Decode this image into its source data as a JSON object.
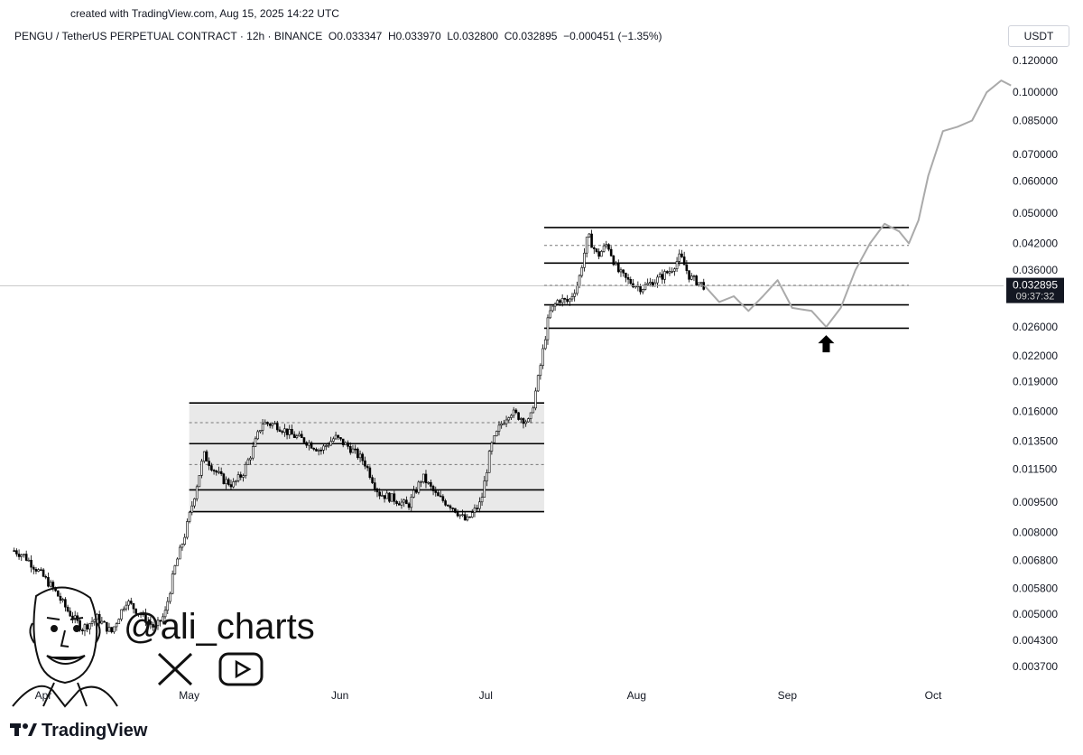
{
  "header": {
    "created_line": "created with TradingView.com, Aug 15, 2025 14:22 UTC",
    "symbol_line": "PENGU / TetherUS PERPETUAL CONTRACT · 12h · BINANCE",
    "open": "O0.033347",
    "high": "H0.033970",
    "low": "L0.032800",
    "close": "C0.032895",
    "change": "−0.000451 (−1.35%)"
  },
  "currency_button": "USDT",
  "price_tag": {
    "price": "0.032895",
    "countdown": "09:37:32",
    "color": "#131722"
  },
  "watermark": {
    "handle": "@ali_charts",
    "x_icon": "x-logo-icon",
    "youtube_icon": "youtube-icon"
  },
  "tv_logo": {
    "text": "TradingView",
    "icon": "tradingview-logo-icon"
  },
  "chart_data": {
    "type": "candlestick",
    "scale": "log",
    "title": "",
    "y_ticks": [
      "0.120000",
      "0.100000",
      "0.085000",
      "0.070000",
      "0.060000",
      "0.050000",
      "0.042000",
      "0.036000",
      "0.032895",
      "0.026000",
      "0.022000",
      "0.019000",
      "0.016000",
      "0.013500",
      "0.011500",
      "0.009500",
      "0.008000",
      "0.006800",
      "0.005800",
      "0.005000",
      "0.004300",
      "0.003700"
    ],
    "y_tick_values": [
      0.12,
      0.1,
      0.085,
      0.07,
      0.06,
      0.05,
      0.042,
      0.036,
      0.032895,
      0.026,
      0.022,
      0.019,
      0.016,
      0.0135,
      0.0115,
      0.0095,
      0.008,
      0.0068,
      0.0058,
      0.005,
      0.0043,
      0.0037
    ],
    "x_ticks": [
      {
        "label": "Apr",
        "date": "2025-04-01"
      },
      {
        "label": "May",
        "date": "2025-05-01"
      },
      {
        "label": "Jun",
        "date": "2025-06-01"
      },
      {
        "label": "Jul",
        "date": "2025-07-01"
      },
      {
        "label": "Aug",
        "date": "2025-08-01"
      },
      {
        "label": "Sep",
        "date": "2025-09-01"
      },
      {
        "label": "Oct",
        "date": "2025-10-01"
      }
    ],
    "price_path": [
      [
        "2025-03-26",
        0.0072
      ],
      [
        "2025-03-28",
        0.007
      ],
      [
        "2025-03-31",
        0.0064
      ],
      [
        "2025-04-03",
        0.0058
      ],
      [
        "2025-04-06",
        0.0051
      ],
      [
        "2025-04-09",
        0.0046
      ],
      [
        "2025-04-12",
        0.0049
      ],
      [
        "2025-04-15",
        0.0045
      ],
      [
        "2025-04-18",
        0.0054
      ],
      [
        "2025-04-21",
        0.005
      ],
      [
        "2025-04-24",
        0.0046
      ],
      [
        "2025-04-26",
        0.005
      ],
      [
        "2025-04-28",
        0.0065
      ],
      [
        "2025-04-30",
        0.0078
      ],
      [
        "2025-05-02",
        0.0098
      ],
      [
        "2025-05-04",
        0.0125
      ],
      [
        "2025-05-06",
        0.0115
      ],
      [
        "2025-05-08",
        0.0108
      ],
      [
        "2025-05-10",
        0.0105
      ],
      [
        "2025-05-12",
        0.0112
      ],
      [
        "2025-05-14",
        0.0128
      ],
      [
        "2025-05-16",
        0.015
      ],
      [
        "2025-05-19",
        0.0148
      ],
      [
        "2025-05-22",
        0.014
      ],
      [
        "2025-05-25",
        0.0135
      ],
      [
        "2025-05-28",
        0.0128
      ],
      [
        "2025-05-31",
        0.0138
      ],
      [
        "2025-06-03",
        0.013
      ],
      [
        "2025-06-06",
        0.012
      ],
      [
        "2025-06-09",
        0.01
      ],
      [
        "2025-06-12",
        0.0097
      ],
      [
        "2025-06-15",
        0.0093
      ],
      [
        "2025-06-18",
        0.011
      ],
      [
        "2025-06-21",
        0.0098
      ],
      [
        "2025-06-24",
        0.0093
      ],
      [
        "2025-06-27",
        0.0085
      ],
      [
        "2025-06-30",
        0.0095
      ],
      [
        "2025-07-02",
        0.013
      ],
      [
        "2025-07-04",
        0.0148
      ],
      [
        "2025-07-06",
        0.016
      ],
      [
        "2025-07-08",
        0.0155
      ],
      [
        "2025-07-10",
        0.015
      ],
      [
        "2025-07-12",
        0.02
      ],
      [
        "2025-07-14",
        0.028
      ],
      [
        "2025-07-16",
        0.0305
      ],
      [
        "2025-07-18",
        0.03
      ],
      [
        "2025-07-20",
        0.0335
      ],
      [
        "2025-07-22",
        0.044
      ],
      [
        "2025-07-24",
        0.039
      ],
      [
        "2025-07-26",
        0.042
      ],
      [
        "2025-07-28",
        0.036
      ],
      [
        "2025-07-30",
        0.034
      ],
      [
        "2025-08-02",
        0.0325
      ],
      [
        "2025-08-05",
        0.034
      ],
      [
        "2025-08-08",
        0.036
      ],
      [
        "2025-08-10",
        0.039
      ],
      [
        "2025-08-12",
        0.0345
      ],
      [
        "2025-08-15",
        0.0329
      ]
    ],
    "projection": [
      [
        "2025-08-15",
        0.0329
      ],
      [
        "2025-08-18",
        0.03
      ],
      [
        "2025-08-21",
        0.031
      ],
      [
        "2025-08-24",
        0.0285
      ],
      [
        "2025-08-27",
        0.031
      ],
      [
        "2025-08-30",
        0.034
      ],
      [
        "2025-09-02",
        0.029
      ],
      [
        "2025-09-06",
        0.0285
      ],
      [
        "2025-09-09",
        0.026
      ],
      [
        "2025-09-12",
        0.029
      ],
      [
        "2025-09-15",
        0.036
      ],
      [
        "2025-09-18",
        0.042
      ],
      [
        "2025-09-21",
        0.047
      ],
      [
        "2025-09-24",
        0.045
      ],
      [
        "2025-09-26",
        0.042
      ],
      [
        "2025-09-28",
        0.048
      ],
      [
        "2025-09-30",
        0.062
      ],
      [
        "2025-10-03",
        0.08
      ],
      [
        "2025-10-06",
        0.082
      ],
      [
        "2025-10-09",
        0.085
      ],
      [
        "2025-10-12",
        0.1
      ],
      [
        "2025-10-15",
        0.107
      ],
      [
        "2025-10-17",
        0.104
      ]
    ],
    "channels": [
      {
        "x_start": "2025-05-01",
        "x_end": "2025-07-13",
        "solid": [
          0.009,
          0.0102,
          0.0133,
          0.0168
        ],
        "dashed": [
          0.0118,
          0.015
        ],
        "shaded": true
      },
      {
        "x_start": "2025-07-13",
        "x_end": "2025-09-26",
        "solid": [
          0.0258,
          0.0295,
          0.0375,
          0.046
        ],
        "dashed": [
          0.033,
          0.0415
        ],
        "shaded": false
      }
    ],
    "current_price": 0.032895,
    "arrow_annotation": {
      "date": "2025-09-09",
      "price": 0.0248,
      "direction": "up"
    }
  }
}
